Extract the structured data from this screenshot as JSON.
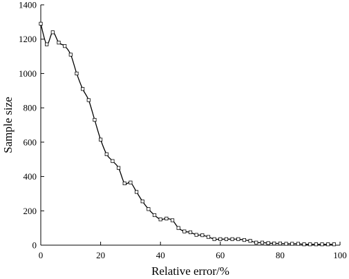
{
  "chart_data": {
    "type": "line",
    "title": "",
    "xlabel": "Relative error/%",
    "ylabel": "Sample size",
    "xlim": [
      0,
      100
    ],
    "ylim": [
      0,
      1400
    ],
    "x_ticks": [
      0,
      20,
      40,
      60,
      80,
      100
    ],
    "y_ticks": [
      0,
      200,
      400,
      600,
      800,
      1000,
      1200,
      1400
    ],
    "grid": false,
    "legend": "none",
    "series": [
      {
        "x": [
          0,
          2,
          4,
          6,
          8,
          10,
          12,
          14,
          16,
          18,
          20,
          22,
          24,
          26,
          28,
          30,
          32,
          34,
          36,
          38,
          40,
          42,
          44,
          46,
          48,
          50,
          52,
          54,
          56,
          58,
          60,
          62,
          64,
          66,
          68,
          70,
          72,
          74,
          76,
          78,
          80,
          82,
          84,
          86,
          88,
          90,
          92,
          94,
          96,
          98
        ],
        "values": [
          1290,
          1170,
          1240,
          1180,
          1160,
          1110,
          1000,
          910,
          845,
          730,
          615,
          530,
          490,
          450,
          360,
          365,
          310,
          255,
          210,
          175,
          150,
          155,
          145,
          100,
          80,
          75,
          60,
          58,
          48,
          35,
          35,
          35,
          35,
          35,
          30,
          25,
          15,
          15,
          12,
          10,
          10,
          8,
          8,
          8,
          5,
          5,
          5,
          5,
          5,
          5
        ]
      }
    ]
  }
}
